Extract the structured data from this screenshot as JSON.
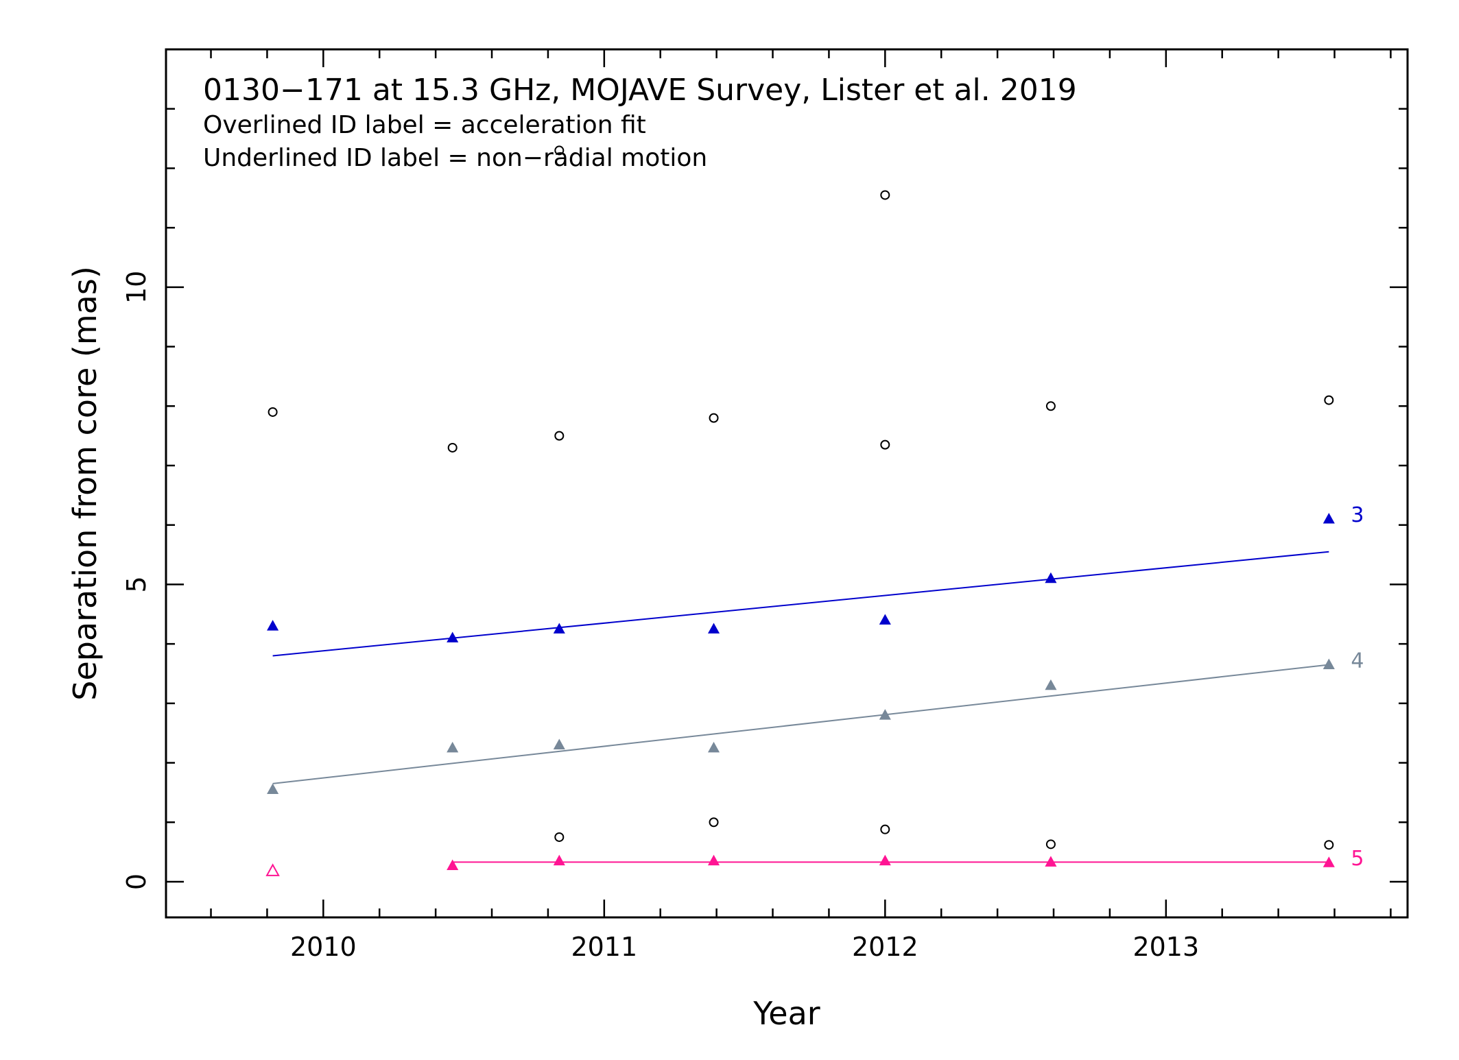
{
  "chart_data": {
    "type": "scatter",
    "title": "0130−171 at 15.3 GHz, MOJAVE Survey, Lister et al. 2019",
    "subtitle_lines": [
      "Overlined ID label = acceleration fit",
      "Underlined ID label = non−radial motion"
    ],
    "xlabel": "Year",
    "ylabel": "Separation from core (mas)",
    "xlim": [
      2009.44,
      2013.86
    ],
    "ylim": [
      -0.6,
      14.0
    ],
    "xticks": [
      2010,
      2011,
      2012,
      2013
    ],
    "xticks_minor": [
      2009.6,
      2009.8,
      2010.2,
      2010.4,
      2010.6,
      2010.8,
      2011.2,
      2011.4,
      2011.6,
      2011.8,
      2012.2,
      2012.4,
      2012.6,
      2012.8,
      2013.2,
      2013.4,
      2013.6,
      2013.8
    ],
    "yticks": [
      0,
      5,
      10
    ],
    "yticks_minor": [
      1,
      2,
      3,
      4,
      6,
      7,
      8,
      9,
      11,
      12,
      13
    ],
    "grid": false,
    "legend": "none",
    "series": [
      {
        "name": "3",
        "color": "#0000cc",
        "marker": "filled-triangle",
        "points": [
          [
            2009.82,
            4.3
          ],
          [
            2010.46,
            4.1
          ],
          [
            2010.84,
            4.25
          ],
          [
            2011.39,
            4.25
          ],
          [
            2012.0,
            4.4
          ],
          [
            2012.59,
            5.1
          ],
          [
            2013.58,
            6.1
          ]
        ],
        "fit": [
          [
            2009.82,
            3.8
          ],
          [
            2013.58,
            5.55
          ]
        ]
      },
      {
        "name": "4",
        "color": "#778899",
        "marker": "filled-triangle",
        "points": [
          [
            2009.82,
            1.55
          ],
          [
            2010.46,
            2.25
          ],
          [
            2010.84,
            2.3
          ],
          [
            2011.39,
            2.25
          ],
          [
            2012.0,
            2.8
          ],
          [
            2012.59,
            3.3
          ],
          [
            2013.58,
            3.65
          ]
        ],
        "fit": [
          [
            2009.82,
            1.65
          ],
          [
            2013.58,
            3.65
          ]
        ]
      },
      {
        "name": "5",
        "color": "#ff1493",
        "marker": "filled-triangle",
        "points": [
          [
            2010.46,
            0.27
          ],
          [
            2010.84,
            0.35
          ],
          [
            2011.39,
            0.35
          ],
          [
            2012.0,
            0.35
          ],
          [
            2012.59,
            0.33
          ],
          [
            2013.58,
            0.32
          ]
        ],
        "open_points": [
          [
            2009.82,
            0.18
          ]
        ],
        "fit": [
          [
            2010.46,
            0.33
          ],
          [
            2013.58,
            0.33
          ]
        ]
      },
      {
        "name": "",
        "color": "#000000",
        "marker": "open-circle",
        "points": [
          [
            2009.82,
            7.9
          ],
          [
            2010.46,
            7.3
          ],
          [
            2010.84,
            7.5
          ],
          [
            2010.84,
            12.3
          ],
          [
            2011.39,
            7.8
          ],
          [
            2012.0,
            7.35
          ],
          [
            2012.0,
            11.55
          ],
          [
            2012.59,
            8.0
          ],
          [
            2013.58,
            8.1
          ],
          [
            2010.84,
            0.75
          ],
          [
            2011.39,
            1.0
          ],
          [
            2012.0,
            0.88
          ],
          [
            2012.59,
            0.63
          ],
          [
            2013.58,
            0.62
          ]
        ]
      }
    ]
  }
}
